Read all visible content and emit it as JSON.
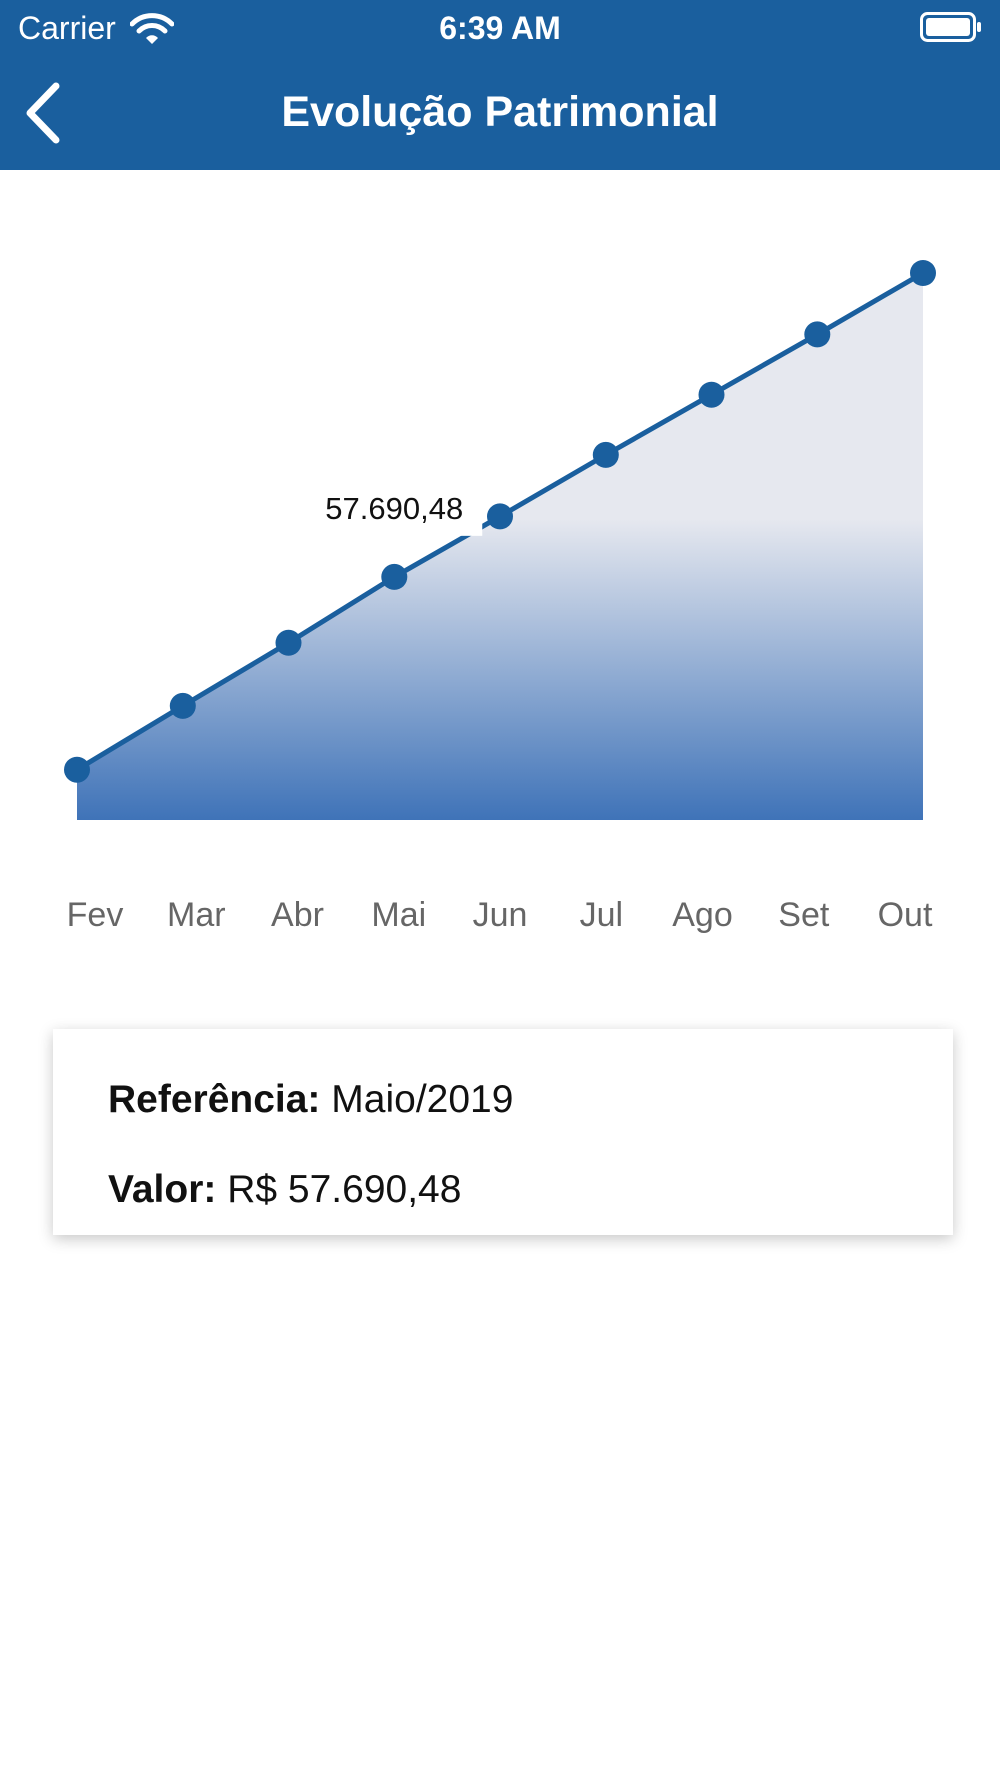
{
  "status_bar": {
    "carrier": "Carrier",
    "time": "6:39 AM",
    "wifi_icon": "wifi-icon",
    "battery_icon": "battery-icon"
  },
  "nav": {
    "title": "Evolução Patrimonial",
    "back_icon": "chevron-left-icon"
  },
  "colors": {
    "brand": "#1a5f9e",
    "line": "#1a5f9e",
    "area_top": "#e6e8ef",
    "area_bottom": "#3f73b8",
    "tick_text": "#666666"
  },
  "chart_data": {
    "type": "area",
    "categories": [
      "Fev",
      "Mar",
      "Abr",
      "Mai",
      "Jun",
      "Jul",
      "Ago",
      "Set",
      "Out"
    ],
    "values": [
      49530,
      52230,
      54900,
      57690.48,
      60250,
      62850,
      65400,
      67950,
      70550
    ],
    "ylim": [
      47400,
      70550
    ],
    "grid": false,
    "selected_index": 3,
    "tooltip": "57.690,48"
  },
  "details": {
    "reference_label": "Referência:",
    "reference_value": "Maio/2019",
    "value_label": "Valor:",
    "value_value": "R$ 57.690,48"
  }
}
